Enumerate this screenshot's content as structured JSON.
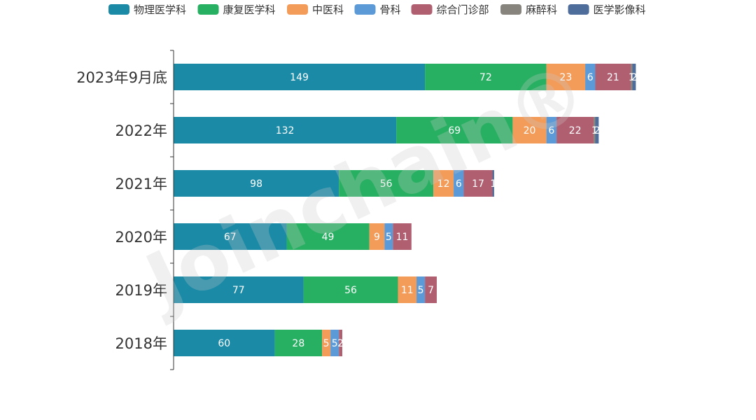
{
  "chart_data": {
    "type": "bar",
    "orientation": "horizontal",
    "stacked": true,
    "categories": [
      "2023年9月底",
      "2022年",
      "2021年",
      "2020年",
      "2019年",
      "2018年"
    ],
    "series": [
      {
        "name": "物理医学科",
        "color": "#1a8aa6",
        "values": [
          149,
          132,
          98,
          67,
          77,
          60
        ]
      },
      {
        "name": "康复医学科",
        "color": "#28b062",
        "values": [
          72,
          69,
          56,
          49,
          56,
          28
        ]
      },
      {
        "name": "中医科",
        "color": "#f39c5a",
        "values": [
          23,
          20,
          12,
          9,
          11,
          5
        ]
      },
      {
        "name": "骨科",
        "color": "#5b9ad6",
        "values": [
          6,
          6,
          6,
          5,
          5,
          5
        ]
      },
      {
        "name": "综合门诊部",
        "color": "#b05f70",
        "values": [
          21,
          22,
          17,
          11,
          7,
          2
        ]
      },
      {
        "name": "麻醉科",
        "color": "#86847c",
        "values": [
          1,
          1,
          0,
          0,
          0,
          0
        ]
      },
      {
        "name": "医学影像科",
        "color": "#4e6d9a",
        "values": [
          2,
          2,
          1,
          0,
          0,
          0
        ]
      }
    ],
    "legend_position": "top",
    "watermark": "Joinchain®",
    "xlim": [
      0,
      290
    ]
  }
}
